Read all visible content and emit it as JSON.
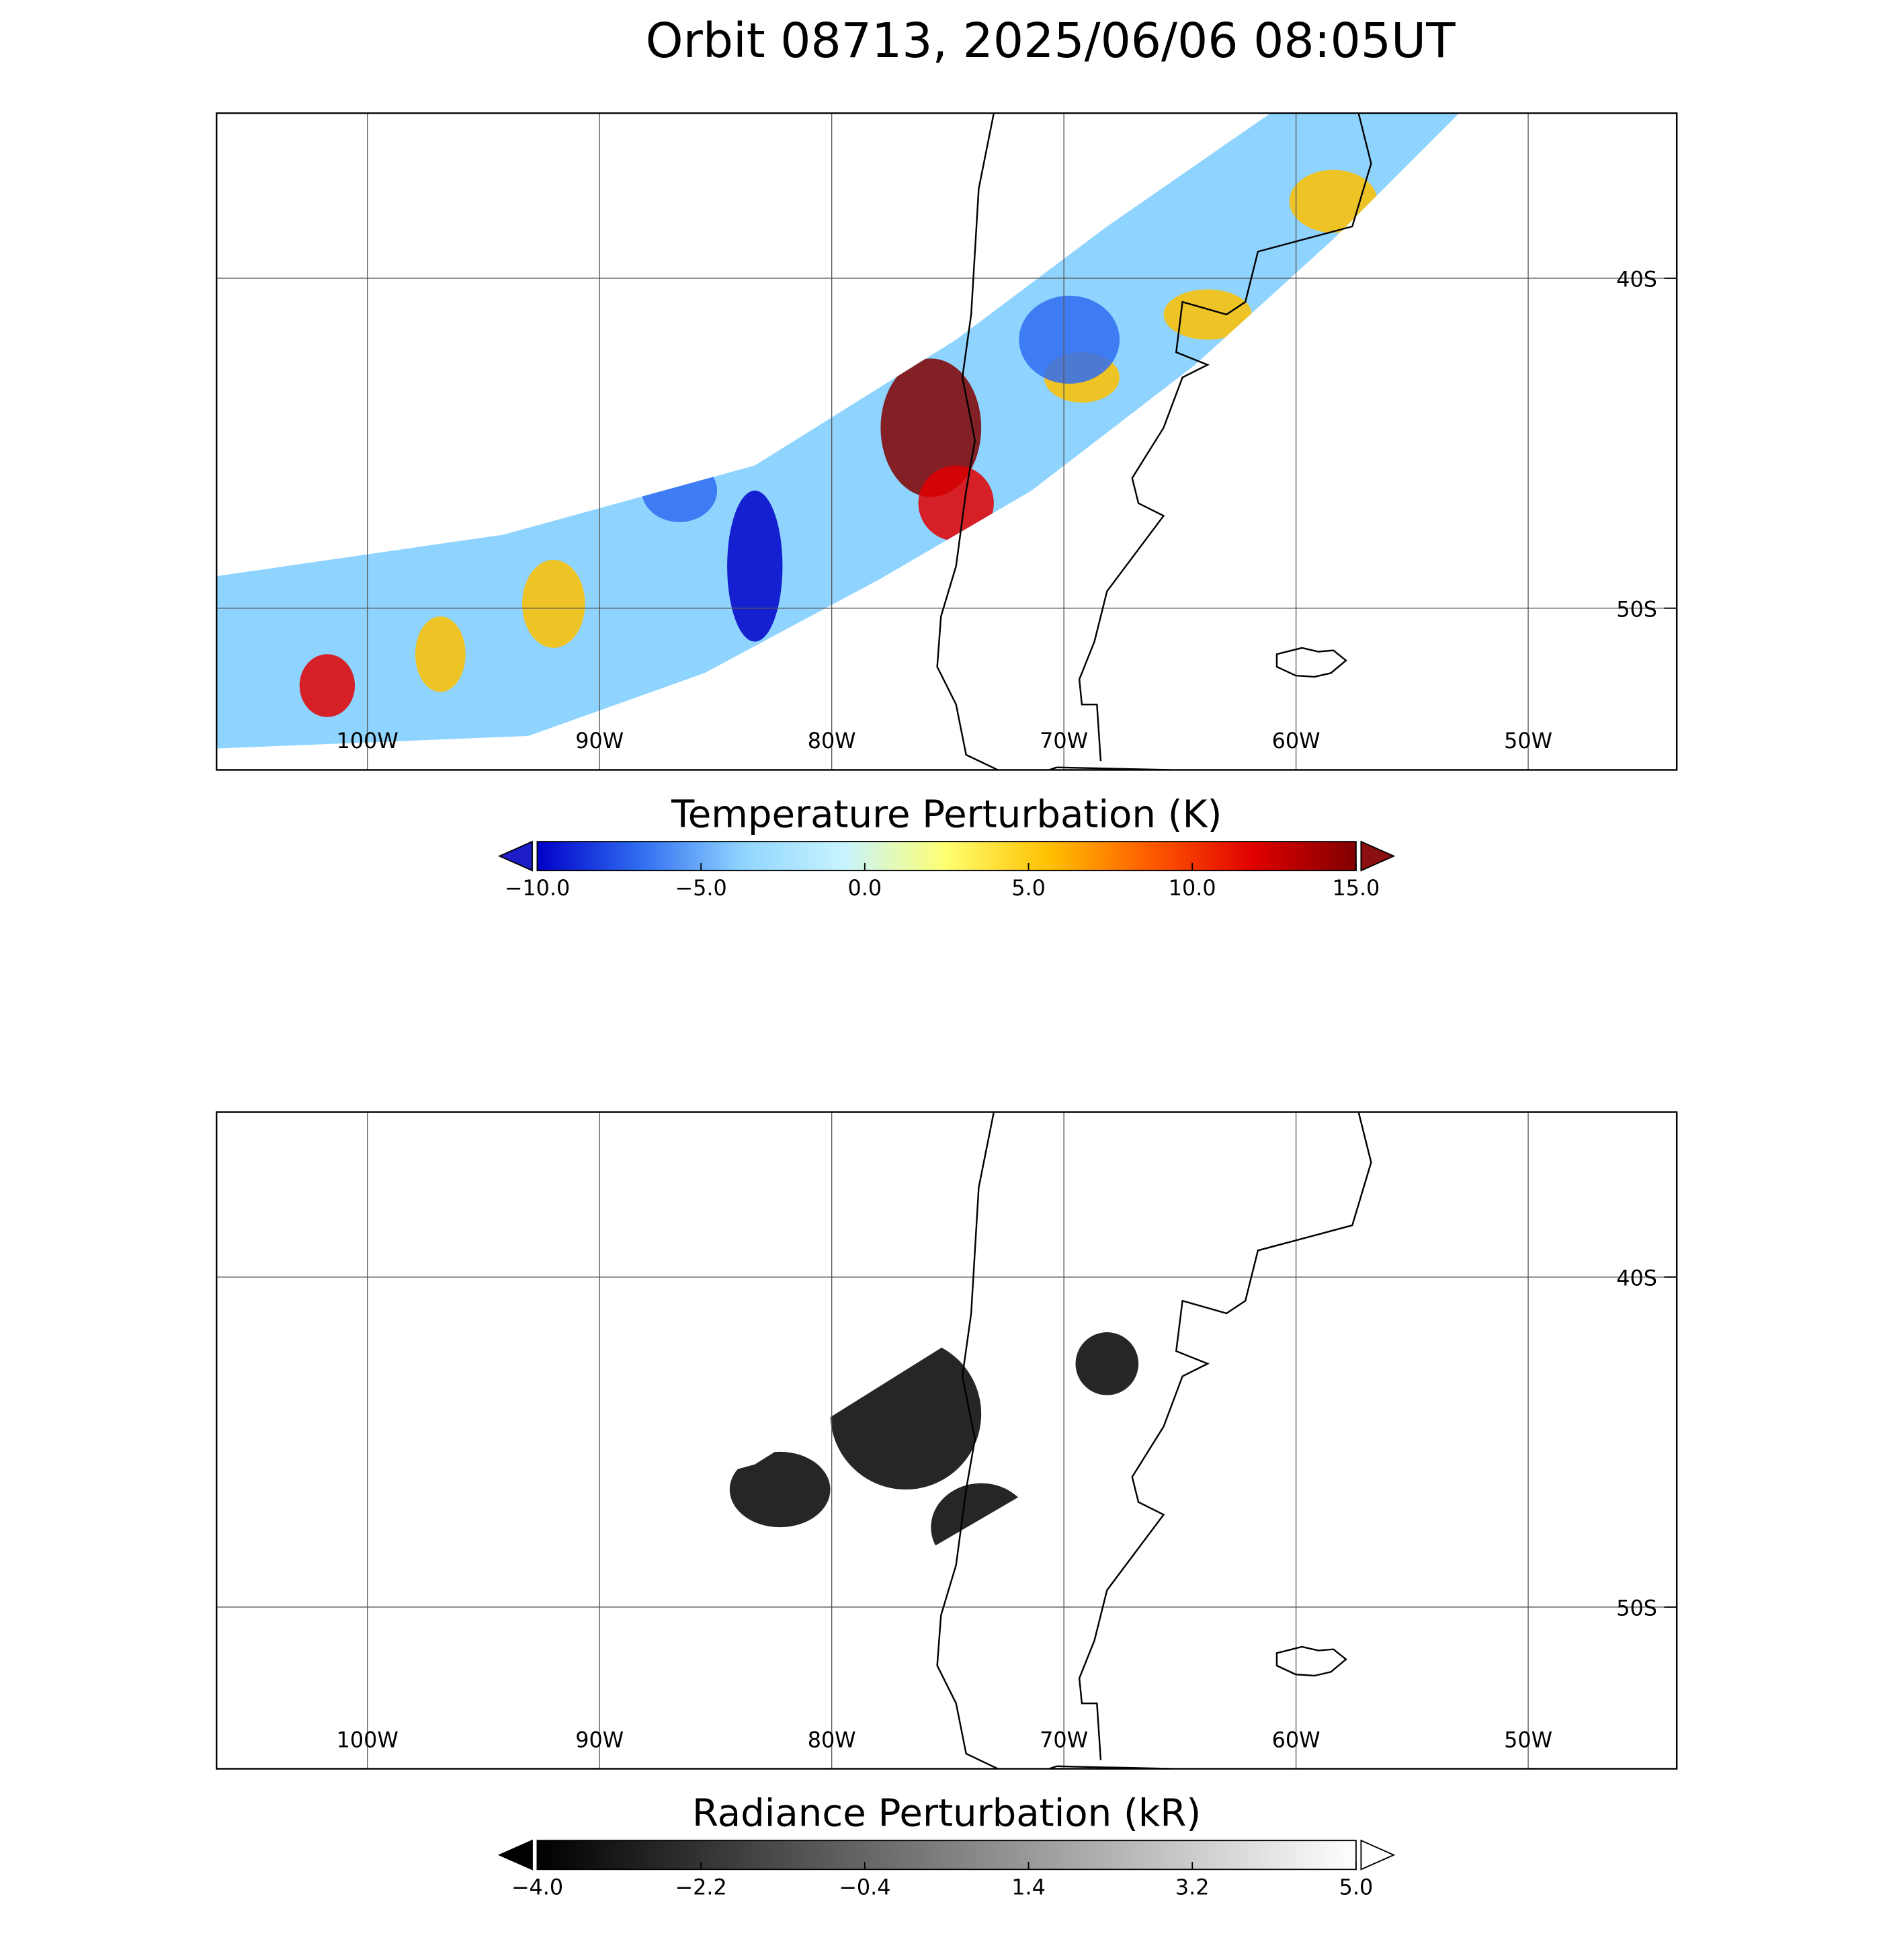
{
  "title": "Orbit 08713, 2025/06/06 08:05UT",
  "panels": [
    {
      "lonlim": [
        -106.5,
        -43.6
      ],
      "latlim": [
        -54.9,
        -35
      ],
      "lonticks": [
        {
          "value": -100,
          "label": "100W"
        },
        {
          "value": -90,
          "label": "90W"
        },
        {
          "value": -80,
          "label": "80W"
        },
        {
          "value": -70,
          "label": "70W"
        },
        {
          "value": -60,
          "label": "60W"
        },
        {
          "value": -50,
          "label": "50W"
        }
      ],
      "latticks": [
        {
          "value": -40,
          "label": "40S"
        },
        {
          "value": -50,
          "label": "50S"
        }
      ],
      "colorbar": {
        "label": "Temperature Perturbation (K)",
        "lim": [
          -10,
          15
        ],
        "ticks": [
          {
            "value": -10,
            "label": "−10.0"
          },
          {
            "value": -5,
            "label": "−5.0"
          },
          {
            "value": 0,
            "label": "0.0"
          },
          {
            "value": 5,
            "label": "5.0"
          },
          {
            "value": 10,
            "label": "10.0"
          },
          {
            "value": 15,
            "label": "15.0"
          }
        ],
        "colors": [
          "#0000c8",
          "#2f6cf0",
          "#8fd4ff",
          "#c8f4ff",
          "#ffff70",
          "#ffc000",
          "#ff5a00",
          "#e00000",
          "#800000"
        ],
        "under_color": "#1e1ec8",
        "over_color": "#8b1010"
      }
    },
    {
      "lonlim": [
        -106.5,
        -43.6
      ],
      "latlim": [
        -54.9,
        -35
      ],
      "lonticks": [
        {
          "value": -100,
          "label": "100W"
        },
        {
          "value": -90,
          "label": "90W"
        },
        {
          "value": -80,
          "label": "80W"
        },
        {
          "value": -70,
          "label": "70W"
        },
        {
          "value": -60,
          "label": "60W"
        },
        {
          "value": -50,
          "label": "50W"
        }
      ],
      "latticks": [
        {
          "value": -40,
          "label": "40S"
        },
        {
          "value": -50,
          "label": "50S"
        }
      ],
      "colorbar": {
        "label": "Radiance Perturbation (kR)",
        "lim": [
          -4,
          5
        ],
        "ticks": [
          {
            "value": -4,
            "label": "−4.0"
          },
          {
            "value": -2.2,
            "label": "−2.2"
          },
          {
            "value": -0.4,
            "label": "−0.4"
          },
          {
            "value": 1.4,
            "label": "1.4"
          },
          {
            "value": 3.2,
            "label": "3.2"
          },
          {
            "value": 5,
            "label": "5.0"
          }
        ],
        "colors": [
          "#000000",
          "#ffffff"
        ],
        "under_color": "#000000",
        "over_color": "#ffffff"
      }
    }
  ]
}
